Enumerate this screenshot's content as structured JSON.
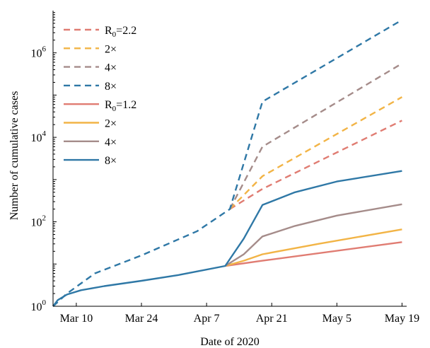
{
  "chart_data": {
    "type": "line",
    "title": "",
    "xlabel": "Date of 2020",
    "ylabel": "Number of cumulative cases",
    "y_scale": "log",
    "ylim": [
      1,
      10000000
    ],
    "xlim": [
      "2020-03-05",
      "2020-05-20"
    ],
    "grid": false,
    "legend_position": "top-left",
    "x_ticks": [
      "2020-03-10",
      "2020-03-24",
      "2020-04-07",
      "2020-04-21",
      "2020-05-05",
      "2020-05-19"
    ],
    "x_tick_labels": [
      "Mar 10",
      "Mar 24",
      "Apr 7",
      "Apr 21",
      "May 5",
      "May 19"
    ],
    "y_ticks": [
      1,
      100,
      10000,
      1000000
    ],
    "y_tick_labels": [
      {
        "base": "10",
        "exp": "0"
      },
      {
        "base": "10",
        "exp": "2"
      },
      {
        "base": "10",
        "exp": "4"
      },
      {
        "base": "10",
        "exp": "6"
      }
    ],
    "colors": {
      "red": "#e07c72",
      "orange": "#f2b446",
      "mauve": "#a58c8a",
      "blue": "#2f78a6"
    },
    "series": [
      {
        "legend": {
          "main": "R",
          "sub": "0",
          "suffix": "=2.2"
        },
        "style": "dashed",
        "color": "#e07c72",
        "points": [
          [
            "2020-04-12",
            200
          ],
          [
            "2020-04-19",
            600
          ],
          [
            "2020-05-19",
            25000
          ]
        ]
      },
      {
        "legend": {
          "main": "2×",
          "sub": "",
          "suffix": ""
        },
        "style": "dashed",
        "color": "#f2b446",
        "points": [
          [
            "2020-04-12",
            200
          ],
          [
            "2020-04-19",
            1200
          ],
          [
            "2020-05-19",
            90000
          ]
        ]
      },
      {
        "legend": {
          "main": "4×",
          "sub": "",
          "suffix": ""
        },
        "style": "dashed",
        "color": "#a58c8a",
        "points": [
          [
            "2020-04-12",
            200
          ],
          [
            "2020-04-19",
            6000
          ],
          [
            "2020-05-19",
            560000
          ]
        ]
      },
      {
        "legend": {
          "main": "8×",
          "sub": "",
          "suffix": ""
        },
        "style": "dashed",
        "color": "#2f78a6",
        "points": [
          [
            "2020-03-05",
            1
          ],
          [
            "2020-03-08",
            2
          ],
          [
            "2020-03-14",
            6
          ],
          [
            "2020-03-24",
            16
          ],
          [
            "2020-04-05",
            60
          ],
          [
            "2020-04-12",
            200
          ],
          [
            "2020-04-19",
            70000
          ],
          [
            "2020-05-19",
            6000000
          ]
        ]
      },
      {
        "legend": {
          "main": "R",
          "sub": "0",
          "suffix": "=1.2"
        },
        "style": "solid",
        "color": "#e07c72",
        "points": [
          [
            "2020-04-11",
            9
          ],
          [
            "2020-04-19",
            12
          ],
          [
            "2020-05-19",
            33
          ]
        ]
      },
      {
        "legend": {
          "main": "2×",
          "sub": "",
          "suffix": ""
        },
        "style": "solid",
        "color": "#f2b446",
        "points": [
          [
            "2020-04-11",
            9
          ],
          [
            "2020-04-15",
            12
          ],
          [
            "2020-04-19",
            17
          ],
          [
            "2020-05-01",
            30
          ],
          [
            "2020-05-19",
            66
          ]
        ]
      },
      {
        "legend": {
          "main": "4×",
          "sub": "",
          "suffix": ""
        },
        "style": "solid",
        "color": "#a58c8a",
        "points": [
          [
            "2020-04-11",
            9
          ],
          [
            "2020-04-15",
            17
          ],
          [
            "2020-04-19",
            45
          ],
          [
            "2020-04-26",
            80
          ],
          [
            "2020-05-05",
            140
          ],
          [
            "2020-05-19",
            260
          ]
        ]
      },
      {
        "legend": {
          "main": "8×",
          "sub": "",
          "suffix": ""
        },
        "style": "solid",
        "color": "#2f78a6",
        "points": [
          [
            "2020-03-05",
            1
          ],
          [
            "2020-03-06",
            1.4
          ],
          [
            "2020-03-08",
            1.9
          ],
          [
            "2020-03-11",
            2.4
          ],
          [
            "2020-03-16",
            3.0
          ],
          [
            "2020-03-24",
            4.0
          ],
          [
            "2020-04-01",
            5.5
          ],
          [
            "2020-04-11",
            9
          ],
          [
            "2020-04-15",
            40
          ],
          [
            "2020-04-19",
            250
          ],
          [
            "2020-04-26",
            500
          ],
          [
            "2020-05-05",
            900
          ],
          [
            "2020-05-19",
            1600
          ]
        ]
      }
    ]
  }
}
